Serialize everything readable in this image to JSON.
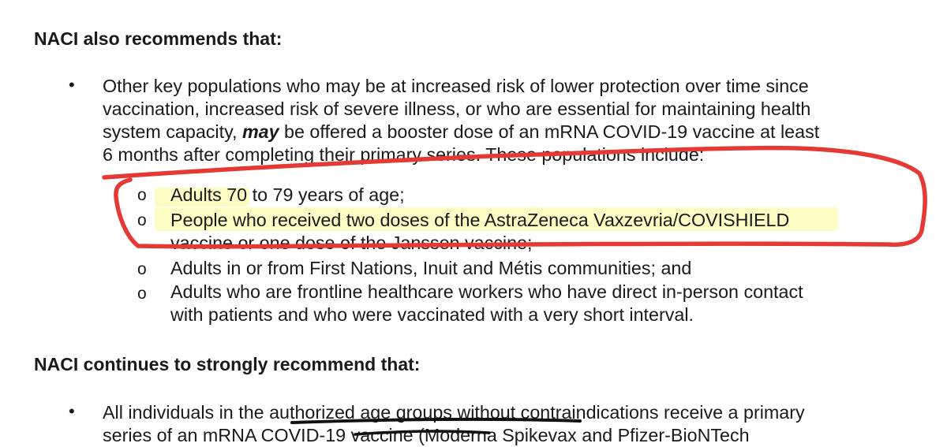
{
  "heading_1": "NACI also recommends that:",
  "bullet_1": {
    "marker": "•",
    "line_1": "Other key populations who may be at increased risk of lower protection over time since",
    "line_2": "vaccination, increased risk of severe illness, or who are essential for maintaining health",
    "line_3_before": "system capacity, ",
    "line_3_emphasis": "may",
    "line_3_after": " be offered a booster dose of an mRNA COVID-19 vaccine at least",
    "line_4": "6 months after completing their primary series. These populations include:"
  },
  "sub_items": [
    {
      "marker": "o",
      "lines": [
        "Adults 70 to 79 years of age;"
      ]
    },
    {
      "marker": "o",
      "lines": [
        "People who received two doses of the AstraZeneca Vaxzevria/COVISHIELD",
        "vaccine or one dose of the Janssen vaccine;"
      ]
    },
    {
      "marker": "o",
      "lines": [
        "Adults in or from First Nations, Inuit and Métis communities; and"
      ]
    },
    {
      "marker": "o",
      "lines": [
        "Adults who are frontline healthcare workers who have direct in-person contact",
        "with patients and who were vaccinated with a very short interval."
      ]
    }
  ],
  "heading_2": "NACI continues to strongly recommend that:",
  "bullet_2": {
    "marker": "•",
    "line_1": "All individuals in the authorized age groups without contraindications receive a primary",
    "line_2": "series of an mRNA COVID-19 vaccine (Moderna Spikevax and Pfizer-BioNTech"
  },
  "annotation_colors": {
    "red_marker": "#e53935",
    "highlighter": "#fbf78a",
    "black_underline": "#111111"
  }
}
